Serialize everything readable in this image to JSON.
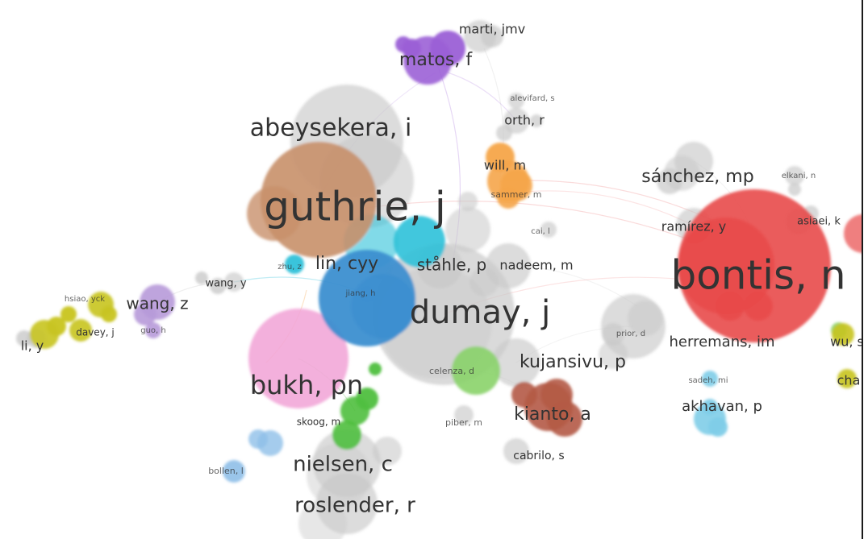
{
  "colors": {
    "red": "#e84a4a",
    "blue": "#3d8fd0",
    "pink": "#f2a7d8",
    "orange": "#f5a54a",
    "purple": "#9b5fd6",
    "lavender": "#b79ad9",
    "green": "#4fbf3f",
    "lightgreen": "#8ad36a",
    "yellow": "#c8c420",
    "cyan": "#2fc1d9",
    "lightblue": "#8fbfe8",
    "skyblue": "#7fcde8",
    "brown": "#b45a45",
    "tan": "#c8906a",
    "gray": "#c9c9c9"
  },
  "nodes": [
    {
      "label": "guthrie, j",
      "color": "tan"
    },
    {
      "label": "bontis, n",
      "color": "red"
    },
    {
      "label": "dumay, j",
      "color": "gray"
    },
    {
      "label": "abeysekera, i",
      "color": "gray"
    },
    {
      "label": "bukh, pn",
      "color": "pink"
    },
    {
      "label": "nielsen, c",
      "color": "gray"
    },
    {
      "label": "roslender, r",
      "color": "gray"
    },
    {
      "label": "matos, f",
      "color": "purple"
    },
    {
      "label": "sánchez, mp",
      "color": "gray"
    },
    {
      "label": "kujansivu, p",
      "color": "gray"
    },
    {
      "label": "kianto, a",
      "color": "brown"
    },
    {
      "label": "herremans, im",
      "color": "gray"
    },
    {
      "label": "lin, cyy",
      "color": "blue"
    },
    {
      "label": "ståhle, p",
      "color": "gray"
    },
    {
      "label": "wang, z",
      "color": "lavender"
    },
    {
      "label": "akhavan, p",
      "color": "skyblue"
    },
    {
      "label": "ramírez, y",
      "color": "gray"
    },
    {
      "label": "nadeem, m",
      "color": "gray"
    },
    {
      "label": "will, m",
      "color": "orange"
    },
    {
      "label": "marti, jmv",
      "color": "gray"
    },
    {
      "label": "orth, r",
      "color": "gray"
    },
    {
      "label": "cabrilo, s",
      "color": "gray"
    },
    {
      "label": "skoog, m",
      "color": "green"
    },
    {
      "label": "celenza, d",
      "color": "lightgreen"
    },
    {
      "label": "piber, m",
      "color": "gray"
    },
    {
      "label": "li, y",
      "color": "yellow"
    },
    {
      "label": "wang, y",
      "color": "gray"
    },
    {
      "label": "davey, j",
      "color": "yellow"
    },
    {
      "label": "bollen, l",
      "color": "lightblue"
    },
    {
      "label": "wu, s",
      "color": "yellow"
    },
    {
      "label": "cha",
      "color": "yellow"
    },
    {
      "label": "asiaei, k",
      "color": "gray"
    },
    {
      "label": "sammer, m",
      "color": "orange"
    },
    {
      "label": "cai, l",
      "color": "gray"
    },
    {
      "label": "alevifard, s",
      "color": "gray"
    },
    {
      "label": "elkani, n",
      "color": "gray"
    },
    {
      "label": "sadeh, mi",
      "color": "skyblue"
    },
    {
      "label": "prior, d",
      "color": "gray"
    },
    {
      "label": "hsiao, yck",
      "color": "yellow"
    },
    {
      "label": "zhu, z",
      "color": "cyan"
    },
    {
      "label": "guo, h",
      "color": "lavender"
    },
    {
      "label": "jiang, h",
      "color": "blue"
    }
  ]
}
